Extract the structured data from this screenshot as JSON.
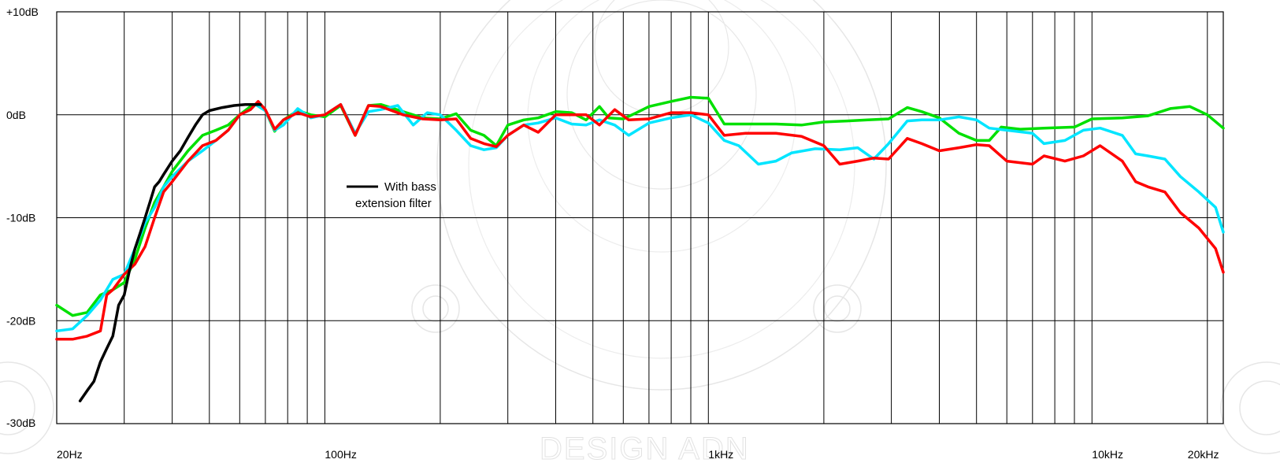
{
  "watermark": "DESIGN ADN",
  "chart_data": {
    "type": "line",
    "xscale": "log",
    "xlim": [
      20,
      22000
    ],
    "ylim": [
      -30,
      10
    ],
    "grid": true,
    "x_ticks": [
      {
        "value": 20,
        "label": "20Hz"
      },
      {
        "value": 100,
        "label": "100Hz"
      },
      {
        "value": 1000,
        "label": "1kHz"
      },
      {
        "value": 10000,
        "label": "10kHz"
      },
      {
        "value": 20000,
        "label": "20kHz"
      }
    ],
    "y_ticks": [
      {
        "value": 10,
        "label": "+10dB"
      },
      {
        "value": 0,
        "label": "0dB"
      },
      {
        "value": -10,
        "label": "-10dB"
      },
      {
        "value": -20,
        "label": "-20dB"
      },
      {
        "value": -30,
        "label": "-30dB"
      }
    ],
    "legend": {
      "position": "center-left",
      "lines": [
        "With bass",
        "extension filter"
      ]
    },
    "series": [
      {
        "name": "With bass extension filter",
        "color": "#000000",
        "points": [
          [
            23,
            -27.8
          ],
          [
            24,
            -26.8
          ],
          [
            25,
            -25.9
          ],
          [
            26,
            -24
          ],
          [
            27,
            -22.7
          ],
          [
            28,
            -21.5
          ],
          [
            29,
            -18.5
          ],
          [
            30,
            -17.5
          ],
          [
            31,
            -15
          ],
          [
            32,
            -13
          ],
          [
            33,
            -11.5
          ],
          [
            34,
            -10
          ],
          [
            35,
            -8.5
          ],
          [
            36,
            -7
          ],
          [
            37,
            -6.5
          ],
          [
            38,
            -5.8
          ],
          [
            40,
            -4.5
          ],
          [
            42,
            -3.5
          ],
          [
            44,
            -2.2
          ],
          [
            46,
            -1
          ],
          [
            48,
            0
          ],
          [
            50,
            0.4
          ],
          [
            54,
            0.7
          ],
          [
            58,
            0.9
          ],
          [
            62,
            1
          ],
          [
            65,
            1
          ],
          [
            68,
            1
          ]
        ]
      },
      {
        "name": "",
        "color": "#00e000",
        "points": [
          [
            20,
            -18.5
          ],
          [
            22,
            -19.5
          ],
          [
            24,
            -19.2
          ],
          [
            26,
            -17.5
          ],
          [
            28,
            -17
          ],
          [
            30,
            -16.3
          ],
          [
            32,
            -14
          ],
          [
            34,
            -11
          ],
          [
            36,
            -8.5
          ],
          [
            38,
            -7
          ],
          [
            40,
            -5.5
          ],
          [
            44,
            -3.5
          ],
          [
            48,
            -2
          ],
          [
            52,
            -1.5
          ],
          [
            56,
            -1
          ],
          [
            60,
            0
          ],
          [
            64,
            0.8
          ],
          [
            66,
            1
          ],
          [
            70,
            0.4
          ],
          [
            74,
            -1.6
          ],
          [
            78,
            -0.5
          ],
          [
            85,
            0.4
          ],
          [
            92,
            0
          ],
          [
            100,
            -0.2
          ],
          [
            110,
            0.9
          ],
          [
            120,
            -2
          ],
          [
            130,
            0.9
          ],
          [
            140,
            1
          ],
          [
            160,
            0.3
          ],
          [
            180,
            -0.3
          ],
          [
            200,
            -0.4
          ],
          [
            220,
            0.1
          ],
          [
            240,
            -1.5
          ],
          [
            260,
            -2
          ],
          [
            280,
            -3
          ],
          [
            300,
            -1
          ],
          [
            330,
            -0.5
          ],
          [
            360,
            -0.3
          ],
          [
            400,
            0.3
          ],
          [
            440,
            0.2
          ],
          [
            480,
            -0.5
          ],
          [
            520,
            0.8
          ],
          [
            550,
            -0.3
          ],
          [
            600,
            -0.4
          ],
          [
            650,
            0.2
          ],
          [
            700,
            0.8
          ],
          [
            800,
            1.3
          ],
          [
            900,
            1.7
          ],
          [
            1000,
            1.6
          ],
          [
            1100,
            -0.9
          ],
          [
            1250,
            -0.9
          ],
          [
            1500,
            -0.9
          ],
          [
            1750,
            -1
          ],
          [
            2000,
            -0.7
          ],
          [
            2300,
            -0.6
          ],
          [
            2600,
            -0.5
          ],
          [
            2950,
            -0.4
          ],
          [
            3300,
            0.7
          ],
          [
            3600,
            0.3
          ],
          [
            4000,
            -0.3
          ],
          [
            4500,
            -1.8
          ],
          [
            5000,
            -2.5
          ],
          [
            5400,
            -2.5
          ],
          [
            5800,
            -1.2
          ],
          [
            6500,
            -1.4
          ],
          [
            7500,
            -1.3
          ],
          [
            9000,
            -1.2
          ],
          [
            10000,
            -0.4
          ],
          [
            12000,
            -0.3
          ],
          [
            14000,
            -0.1
          ],
          [
            16000,
            0.6
          ],
          [
            18000,
            0.8
          ],
          [
            20000,
            0
          ],
          [
            22000,
            -1.3
          ]
        ]
      },
      {
        "name": "",
        "color": "#00e5ff",
        "points": [
          [
            20,
            -21
          ],
          [
            22,
            -20.8
          ],
          [
            24,
            -19.5
          ],
          [
            26,
            -18
          ],
          [
            28,
            -16
          ],
          [
            30,
            -15.5
          ],
          [
            32,
            -13
          ],
          [
            34,
            -10.5
          ],
          [
            36,
            -9
          ],
          [
            38,
            -7
          ],
          [
            40,
            -6
          ],
          [
            44,
            -4.5
          ],
          [
            48,
            -3.5
          ],
          [
            52,
            -2.5
          ],
          [
            56,
            -1.5
          ],
          [
            60,
            0
          ],
          [
            64,
            0.5
          ],
          [
            66,
            1
          ],
          [
            70,
            0.4
          ],
          [
            74,
            -1.5
          ],
          [
            78,
            -1
          ],
          [
            85,
            0.6
          ],
          [
            92,
            -0.3
          ],
          [
            100,
            0
          ],
          [
            110,
            1
          ],
          [
            120,
            -1.8
          ],
          [
            130,
            0.3
          ],
          [
            140,
            0.5
          ],
          [
            155,
            0.9
          ],
          [
            170,
            -1
          ],
          [
            185,
            0.2
          ],
          [
            200,
            0
          ],
          [
            220,
            -1.5
          ],
          [
            240,
            -3
          ],
          [
            260,
            -3.4
          ],
          [
            280,
            -3.2
          ],
          [
            300,
            -2
          ],
          [
            330,
            -1
          ],
          [
            360,
            -0.8
          ],
          [
            400,
            -0.3
          ],
          [
            440,
            -0.9
          ],
          [
            480,
            -1
          ],
          [
            520,
            -0.5
          ],
          [
            570,
            -1
          ],
          [
            620,
            -2
          ],
          [
            700,
            -0.8
          ],
          [
            800,
            -0.3
          ],
          [
            900,
            0
          ],
          [
            1000,
            -0.8
          ],
          [
            1100,
            -2.5
          ],
          [
            1200,
            -3
          ],
          [
            1350,
            -4.8
          ],
          [
            1500,
            -4.5
          ],
          [
            1650,
            -3.7
          ],
          [
            1900,
            -3.3
          ],
          [
            2200,
            -3.4
          ],
          [
            2450,
            -3.2
          ],
          [
            2700,
            -4.3
          ],
          [
            2950,
            -2.8
          ],
          [
            3300,
            -0.6
          ],
          [
            3600,
            -0.5
          ],
          [
            4000,
            -0.5
          ],
          [
            4500,
            -0.2
          ],
          [
            5000,
            -0.5
          ],
          [
            5400,
            -1.3
          ],
          [
            6000,
            -1.5
          ],
          [
            7000,
            -1.8
          ],
          [
            7500,
            -2.8
          ],
          [
            8500,
            -2.5
          ],
          [
            9500,
            -1.5
          ],
          [
            10500,
            -1.3
          ],
          [
            12000,
            -2
          ],
          [
            13000,
            -3.8
          ],
          [
            14000,
            -4
          ],
          [
            15500,
            -4.3
          ],
          [
            17000,
            -6
          ],
          [
            19000,
            -7.5
          ],
          [
            21000,
            -9
          ],
          [
            22000,
            -11.4
          ]
        ]
      },
      {
        "name": "",
        "color": "#ff0000",
        "points": [
          [
            20,
            -21.8
          ],
          [
            22,
            -21.8
          ],
          [
            24,
            -21.5
          ],
          [
            26,
            -21
          ],
          [
            27,
            -17.5
          ],
          [
            28,
            -17
          ],
          [
            30,
            -15.5
          ],
          [
            32,
            -14.5
          ],
          [
            34,
            -12.8
          ],
          [
            36,
            -10
          ],
          [
            38,
            -7.5
          ],
          [
            40,
            -6.5
          ],
          [
            44,
            -4.5
          ],
          [
            48,
            -3
          ],
          [
            52,
            -2.5
          ],
          [
            56,
            -1.5
          ],
          [
            60,
            0
          ],
          [
            64,
            0.5
          ],
          [
            67,
            1.3
          ],
          [
            70,
            0.5
          ],
          [
            74,
            -1.4
          ],
          [
            78,
            -0.5
          ],
          [
            85,
            0.2
          ],
          [
            92,
            -0.2
          ],
          [
            100,
            0
          ],
          [
            110,
            1
          ],
          [
            120,
            -2
          ],
          [
            130,
            0.9
          ],
          [
            140,
            0.8
          ],
          [
            160,
            0
          ],
          [
            180,
            -0.4
          ],
          [
            200,
            -0.5
          ],
          [
            220,
            -0.4
          ],
          [
            240,
            -2.3
          ],
          [
            260,
            -2.8
          ],
          [
            280,
            -3.1
          ],
          [
            300,
            -2
          ],
          [
            330,
            -1
          ],
          [
            360,
            -1.7
          ],
          [
            400,
            0
          ],
          [
            440,
            0
          ],
          [
            480,
            0
          ],
          [
            520,
            -1
          ],
          [
            570,
            0.5
          ],
          [
            620,
            -0.5
          ],
          [
            700,
            -0.4
          ],
          [
            800,
            0.2
          ],
          [
            900,
            0.2
          ],
          [
            1000,
            0
          ],
          [
            1100,
            -2
          ],
          [
            1250,
            -1.8
          ],
          [
            1500,
            -1.8
          ],
          [
            1750,
            -2.1
          ],
          [
            2000,
            -3
          ],
          [
            2200,
            -4.8
          ],
          [
            2450,
            -4.5
          ],
          [
            2700,
            -4.2
          ],
          [
            2950,
            -4.3
          ],
          [
            3300,
            -2.3
          ],
          [
            3600,
            -2.8
          ],
          [
            4000,
            -3.5
          ],
          [
            4500,
            -3.2
          ],
          [
            5000,
            -2.9
          ],
          [
            5400,
            -3
          ],
          [
            6000,
            -4.5
          ],
          [
            7000,
            -4.8
          ],
          [
            7500,
            -4
          ],
          [
            8500,
            -4.5
          ],
          [
            9500,
            -4
          ],
          [
            10500,
            -3
          ],
          [
            12000,
            -4.5
          ],
          [
            13000,
            -6.5
          ],
          [
            14000,
            -7
          ],
          [
            15500,
            -7.5
          ],
          [
            17000,
            -9.5
          ],
          [
            19000,
            -11
          ],
          [
            21000,
            -13
          ],
          [
            22000,
            -15.3
          ]
        ]
      }
    ]
  }
}
